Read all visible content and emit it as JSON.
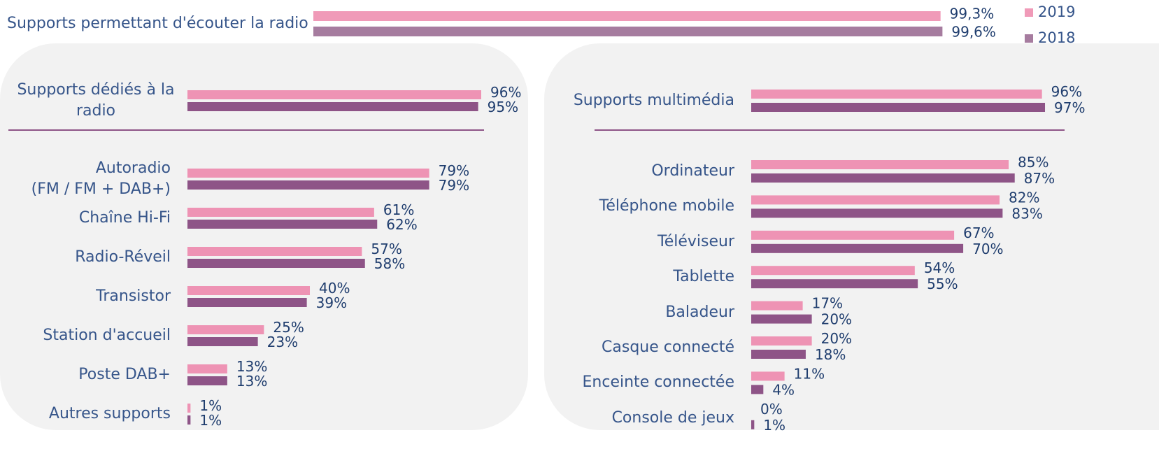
{
  "chart_data": [
    {
      "type": "bar",
      "orientation": "horizontal",
      "legend": "top-right",
      "categories": [
        "Supports permettant d'écouter la radio"
      ],
      "series": [
        {
          "name": "2019",
          "color": "#f09ab8",
          "values": [
            99.3
          ],
          "value_labels": [
            "99,3%"
          ]
        },
        {
          "name": "2018",
          "color": "#a67c9f",
          "values": [
            99.6
          ],
          "value_labels": [
            "99,6%"
          ]
        }
      ]
    },
    {
      "type": "bar",
      "orientation": "horizontal",
      "categories": [
        "Supports dédiés à la\nradio"
      ],
      "series": [
        {
          "color": "#ee93b4",
          "values": [
            96
          ],
          "value_labels": [
            "96%"
          ]
        },
        {
          "color": "#8e5487",
          "values": [
            95
          ],
          "value_labels": [
            "95%"
          ]
        }
      ]
    },
    {
      "type": "bar",
      "orientation": "horizontal",
      "categories": [
        "Autoradio\n(FM / FM + DAB+)",
        "Chaîne Hi-Fi",
        "Radio-Réveil",
        "Transistor",
        "Station d'accueil",
        "Poste DAB+",
        "Autres supports"
      ],
      "series": [
        {
          "color": "#ee93b4",
          "values": [
            79,
            61,
            57,
            40,
            25,
            13,
            1
          ],
          "value_labels": [
            "79%",
            "61%",
            "57%",
            "40%",
            "25%",
            "13%",
            "1%"
          ]
        },
        {
          "color": "#8e5487",
          "values": [
            79,
            62,
            58,
            39,
            23,
            13,
            1
          ],
          "value_labels": [
            "79%",
            "62%",
            "58%",
            "39%",
            "23%",
            "13%",
            "1%"
          ]
        }
      ]
    },
    {
      "type": "bar",
      "orientation": "horizontal",
      "categories": [
        "Supports multimédia"
      ],
      "series": [
        {
          "color": "#ee93b4",
          "values": [
            96
          ],
          "value_labels": [
            "96%"
          ]
        },
        {
          "color": "#8e5487",
          "values": [
            97
          ],
          "value_labels": [
            "97%"
          ]
        }
      ]
    },
    {
      "type": "bar",
      "orientation": "horizontal",
      "categories": [
        "Ordinateur",
        "Téléphone mobile",
        "Téléviseur",
        "Tablette",
        "Baladeur",
        "Casque connecté",
        "Enceinte connectée",
        "Console de jeux"
      ],
      "series": [
        {
          "color": "#ee93b4",
          "values": [
            85,
            82,
            67,
            54,
            17,
            20,
            11,
            0
          ],
          "value_labels": [
            "85%",
            "82%",
            "67%",
            "54%",
            "17%",
            "20%",
            "11%",
            "0%"
          ]
        },
        {
          "color": "#8e5487",
          "values": [
            87,
            83,
            70,
            55,
            20,
            18,
            4,
            1
          ],
          "value_labels": [
            "87%",
            "83%",
            "70%",
            "55%",
            "20%",
            "18%",
            "4%",
            "1%"
          ]
        }
      ]
    }
  ]
}
